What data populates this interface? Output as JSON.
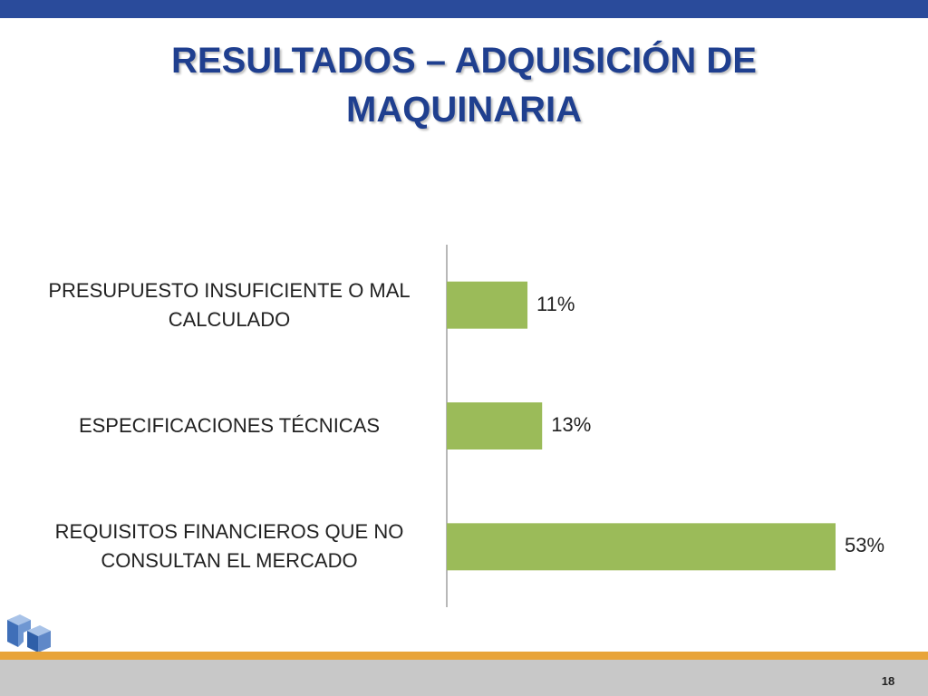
{
  "slide": {
    "title_line1": "RESULTADOS – ADQUISICIÓN DE",
    "title_line2": "MAQUINARIA",
    "page_number": "18"
  },
  "colors": {
    "top_bar": "#2a4b9b",
    "title": "#1f3f8f",
    "bar": "#9bbb59",
    "orange_line": "#e8a43a",
    "bottom_bar": "#c8c8c8"
  },
  "chart_data": {
    "type": "bar",
    "orientation": "horizontal",
    "categories": [
      [
        "PRESUPUESTO INSUFICIENTE O MAL",
        "CALCULADO"
      ],
      [
        "ESPECIFICACIONES TÉCNICAS"
      ],
      [
        "REQUISITOS FINANCIEROS QUE NO",
        "CONSULTAN EL MERCADO"
      ]
    ],
    "values": [
      11,
      13,
      53
    ],
    "value_labels": [
      "11%",
      "13%",
      "53%"
    ],
    "xlim": [
      0,
      60
    ],
    "grid": false,
    "legend": "none"
  }
}
